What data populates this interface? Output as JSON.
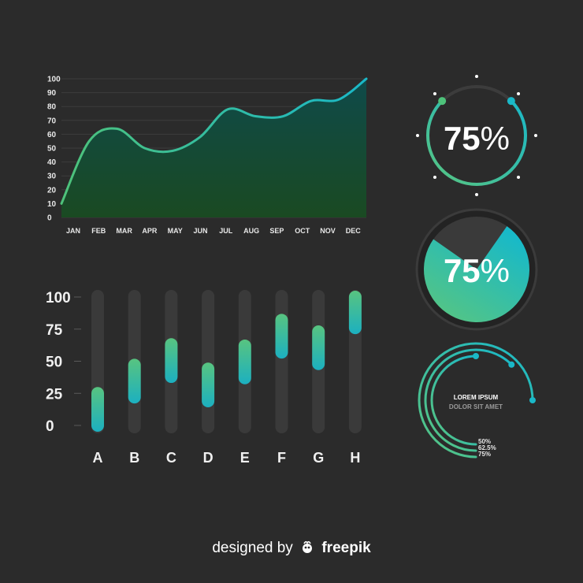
{
  "chart_data": [
    {
      "type": "area",
      "x": [
        "JAN",
        "FEB",
        "MAR",
        "APR",
        "MAY",
        "JUN",
        "JUL",
        "AUG",
        "SEP",
        "OCT",
        "NOV",
        "DEC"
      ],
      "values": [
        10,
        55,
        64,
        50,
        48,
        58,
        78,
        73,
        73,
        84,
        85,
        100
      ],
      "yticks": [
        0,
        10,
        20,
        30,
        40,
        50,
        60,
        70,
        80,
        90,
        100
      ],
      "ylim": [
        0,
        100
      ],
      "grid": true
    },
    {
      "type": "bar",
      "categories": [
        "A",
        "B",
        "C",
        "D",
        "E",
        "F",
        "G",
        "H"
      ],
      "ranges": [
        [
          0,
          25
        ],
        [
          22,
          47
        ],
        [
          38,
          63
        ],
        [
          19,
          44
        ],
        [
          37,
          62
        ],
        [
          57,
          82
        ],
        [
          48,
          73
        ],
        [
          76,
          100
        ]
      ],
      "yticks": [
        "0",
        "25",
        "50",
        "75",
        "100"
      ],
      "ylim": [
        0,
        100
      ]
    },
    {
      "type": "gauge",
      "value": 75,
      "label": "75%"
    },
    {
      "type": "pie",
      "value": 75,
      "label": "75%"
    },
    {
      "type": "radial-bar",
      "title": "LOREM IPSUM",
      "subtitle": "DOLOR SIT AMET",
      "values": [
        50,
        62.5,
        75
      ],
      "labels": [
        "50%",
        "62.5%",
        "75%"
      ]
    }
  ],
  "footer": {
    "prefix": "designed by",
    "brand": "freepik"
  },
  "colors": {
    "background": "#2b2b2b",
    "teal": "#1ab8c8",
    "green": "#4ec27a",
    "track": "#3c3c3c"
  }
}
